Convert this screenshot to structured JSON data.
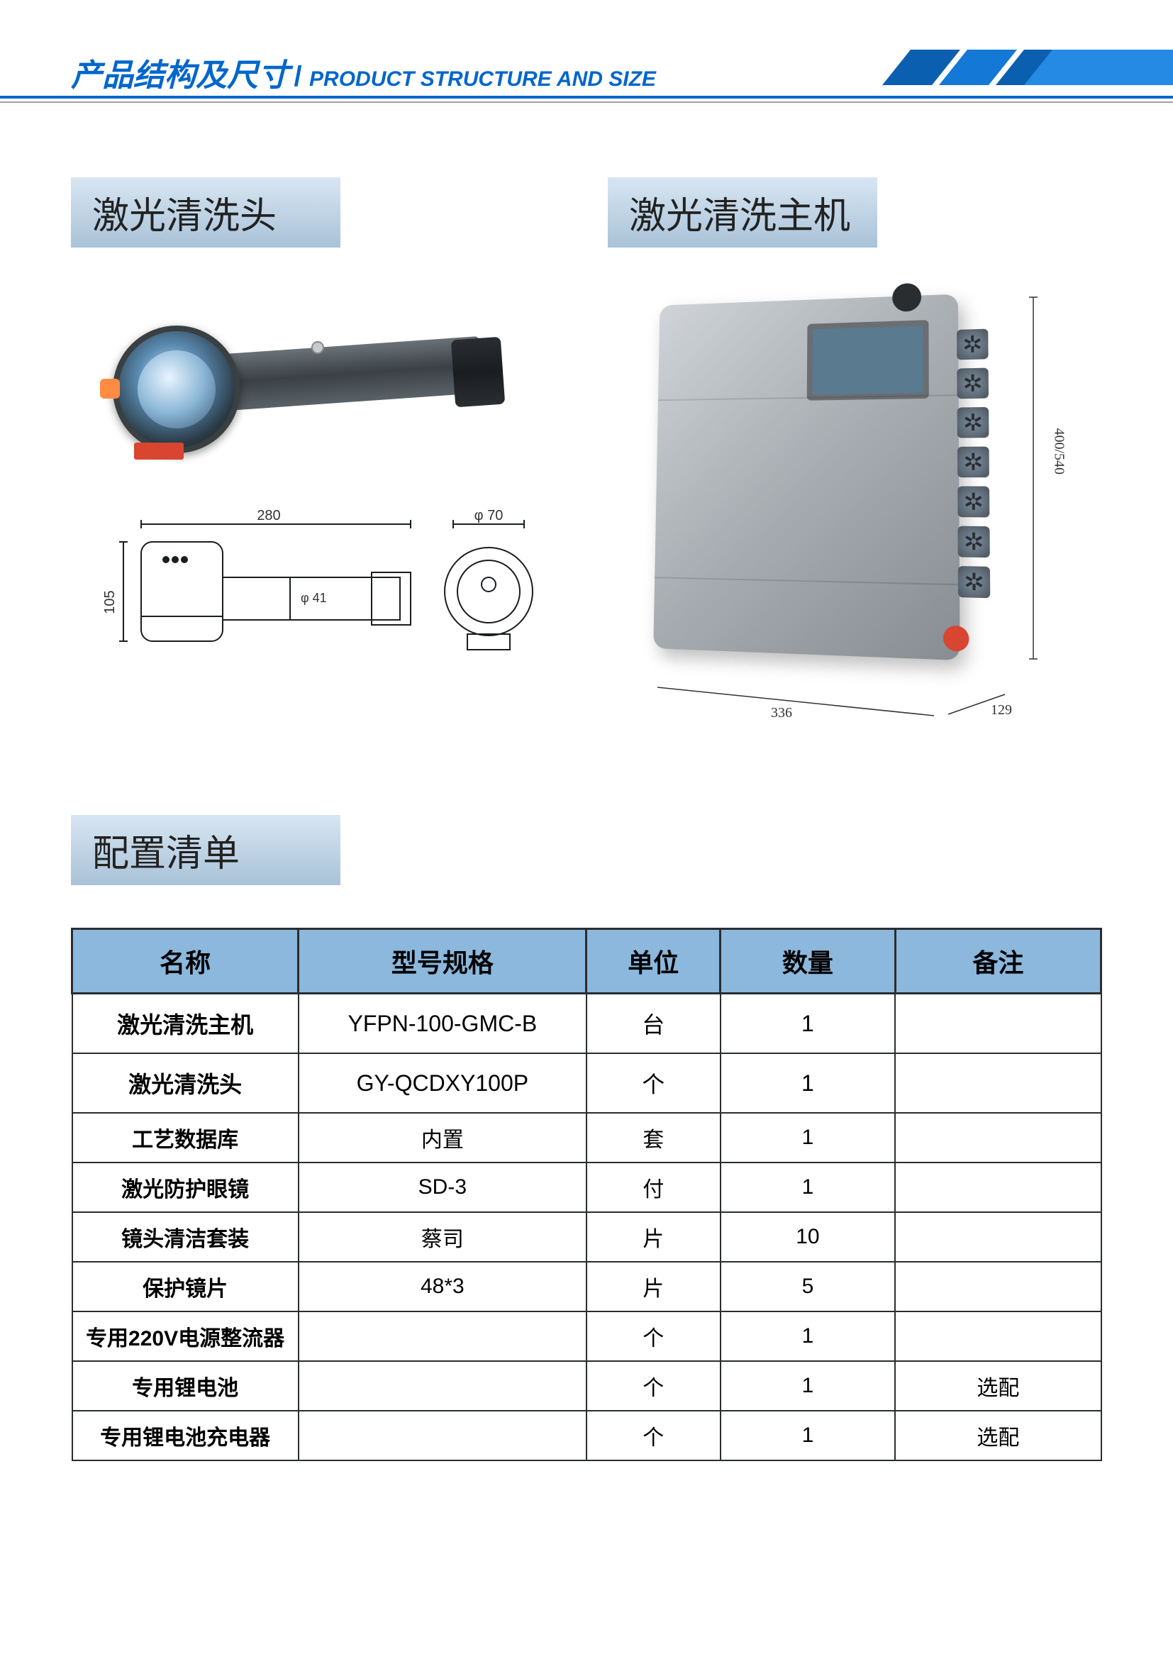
{
  "header": {
    "title_cn": "产品结构及尺寸",
    "title_en": "PRODUCT STRUCTURE AND SIZE",
    "accent_color": "#0066cc"
  },
  "sections": {
    "cleaning_head": {
      "label": "激光清洗头"
    },
    "main_unit": {
      "label": "激光清洗主机"
    },
    "config_list": {
      "label": "配置清单"
    }
  },
  "dimensions": {
    "head": {
      "length": "280",
      "height": "105",
      "barrel_dia": "φ 41",
      "end_dia": "φ 70"
    },
    "machine": {
      "width": "336",
      "depth": "129",
      "height": "400/540"
    }
  },
  "config_table": {
    "header_bg": "#8bb8dc",
    "border_color": "#2a2d30",
    "columns": [
      "名称",
      "型号规格",
      "单位",
      "数量",
      "备注"
    ],
    "rows": [
      {
        "name": "激光清洗主机",
        "model": "YFPN-100-GMC-B",
        "unit": "台",
        "qty": "1",
        "note": "",
        "tall": true
      },
      {
        "name": "激光清洗头",
        "model": "GY-QCDXY100P",
        "unit": "个",
        "qty": "1",
        "note": "",
        "tall": true
      },
      {
        "name": "工艺数据库",
        "model": "内置",
        "unit": "套",
        "qty": "1",
        "note": ""
      },
      {
        "name": "激光防护眼镜",
        "model": "SD-3",
        "unit": "付",
        "qty": "1",
        "note": ""
      },
      {
        "name": "镜头清洁套装",
        "model": "蔡司",
        "unit": "片",
        "qty": "10",
        "note": ""
      },
      {
        "name": "保护镜片",
        "model": "48*3",
        "unit": "片",
        "qty": "5",
        "note": ""
      },
      {
        "name": "专用220V电源整流器",
        "model": "",
        "unit": "个",
        "qty": "1",
        "note": ""
      },
      {
        "name": "专用锂电池",
        "model": "",
        "unit": "个",
        "qty": "1",
        "note": "选配"
      },
      {
        "name": "专用锂电池充电器",
        "model": "",
        "unit": "个",
        "qty": "1",
        "note": "选配"
      }
    ]
  }
}
